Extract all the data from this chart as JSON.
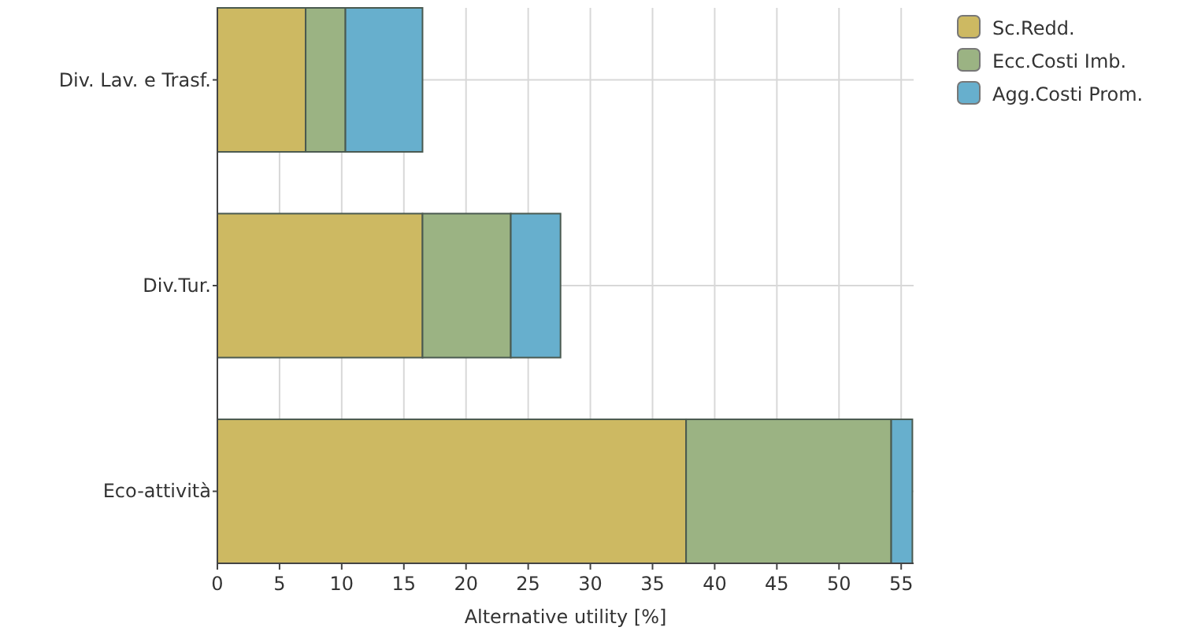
{
  "chart_data": {
    "type": "bar",
    "orientation": "horizontal",
    "stacked": true,
    "xlabel": "Alternative utility [%]",
    "categories": [
      "Div. Lav. e Trasf.",
      "Div.Tur.",
      "Eco-attività"
    ],
    "series": [
      {
        "name": "Sc.Redd.",
        "color": "#cdb962",
        "values": [
          7.1,
          16.5,
          37.7
        ]
      },
      {
        "name": "Ecc.Costi Imb.",
        "color": "#9bb383",
        "values": [
          3.2,
          7.1,
          16.5
        ]
      },
      {
        "name": "Agg.Costi Prom.",
        "color": "#67afcd",
        "values": [
          6.2,
          4.0,
          1.7
        ]
      }
    ],
    "xlim": [
      0,
      56
    ],
    "xticks": [
      0,
      5,
      10,
      15,
      20,
      25,
      30,
      35,
      40,
      45,
      50,
      55
    ],
    "grid": true,
    "legend": "top right"
  }
}
